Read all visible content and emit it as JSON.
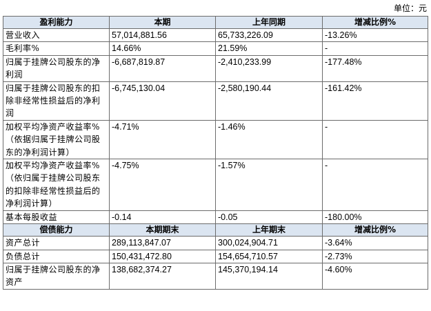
{
  "unit_label": "单位：元",
  "profit_section": {
    "headers": [
      "盈利能力",
      "本期",
      "上年同期",
      "增减比例%"
    ],
    "rows": [
      {
        "label": "营业收入",
        "current": "57,014,881.56",
        "prior": "65,733,226.09",
        "change": "-13.26%"
      },
      {
        "label": "毛利率%",
        "current": "14.66%",
        "prior": "21.59%",
        "change": "-"
      },
      {
        "label": "归属于挂牌公司股东的净利润",
        "current": "-6,687,819.87",
        "prior": "-2,410,233.99",
        "change": "-177.48%"
      },
      {
        "label": "归属于挂牌公司股东的扣除非经常性损益后的净利润",
        "current": "-6,745,130.04",
        "prior": "-2,580,190.44",
        "change": "-161.42%"
      },
      {
        "label": "加权平均净资产收益率%（依据归属于挂牌公司股东的净利润计算）",
        "current": "-4.71%",
        "prior": "-1.46%",
        "change": "-"
      },
      {
        "label": "加权平均净资产收益率%（依归属于挂牌公司股东的扣除非经常性损益后的净利润计算）",
        "current": "-4.75%",
        "prior": "-1.57%",
        "change": "-"
      },
      {
        "label": "基本每股收益",
        "current": "-0.14",
        "prior": "-0.05",
        "change": "-180.00%"
      }
    ]
  },
  "debt_section": {
    "headers": [
      "偿债能力",
      "本期期末",
      "上年期末",
      "增减比例%"
    ],
    "rows": [
      {
        "label": "资产总计",
        "current": "289,113,847.07",
        "prior": "300,024,904.71",
        "change": "-3.64%"
      },
      {
        "label": "负债总计",
        "current": "150,431,472.80",
        "prior": "154,654,710.57",
        "change": "-2.73%"
      },
      {
        "label": "归属于挂牌公司股东的净资产",
        "current": "138,682,374.27",
        "prior": "145,370,194.14",
        "change": "-4.60%"
      }
    ]
  }
}
